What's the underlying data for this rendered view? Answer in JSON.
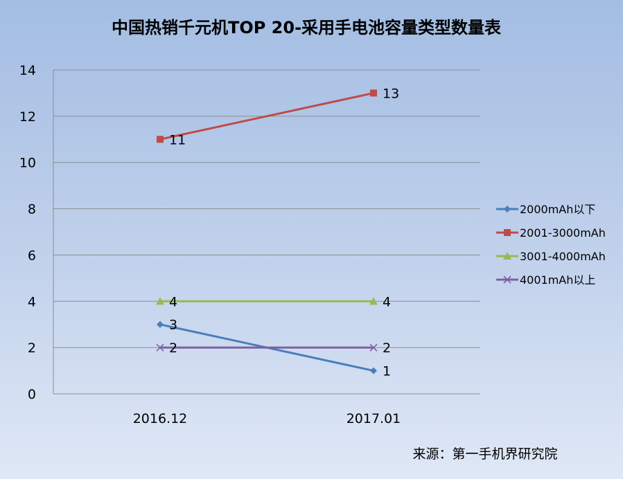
{
  "chart_data": {
    "type": "line",
    "title": "中国热销千元机TOP 20-采用手电池容量类型数量表",
    "categories": [
      "2016.12",
      "2017.01"
    ],
    "ylim": [
      0,
      14
    ],
    "yticks": [
      "0",
      "2",
      "4",
      "6",
      "8",
      "10",
      "12",
      "14"
    ],
    "grid": true,
    "legend_position": "right",
    "series": [
      {
        "name": "2000mAh以下",
        "values": [
          3,
          1
        ],
        "color": "#4a7ebb",
        "marker": "diamond"
      },
      {
        "name": "2001-3000mAh",
        "values": [
          11,
          13
        ],
        "color": "#be4b48",
        "marker": "square"
      },
      {
        "name": "3001-4000mAh",
        "values": [
          4,
          4
        ],
        "color": "#98b954",
        "marker": "triangle"
      },
      {
        "name": "4001mAh以上",
        "values": [
          2,
          2
        ],
        "color": "#7d60a0",
        "marker": "x"
      }
    ],
    "source": "来源：第一手机界研究院"
  }
}
